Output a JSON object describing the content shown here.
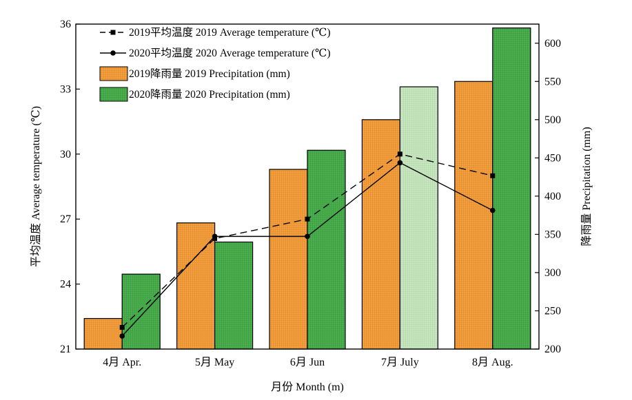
{
  "chart_data": {
    "type": "bar",
    "categories": [
      "4月 Apr.",
      "5月 May",
      "6月 Jun",
      "7月 July",
      "8月 Aug."
    ],
    "xlabel": "月份 Month (m)",
    "ylabel_left": "平均温度 Average temperature (℃)",
    "ylabel_right": "降雨量 Precipitation (mm)",
    "ylim_left": [
      21,
      36
    ],
    "yticks_left": [
      "21",
      "24",
      "27",
      "30",
      "33",
      "36"
    ],
    "ylim_right": [
      200,
      625
    ],
    "yticks_right": [
      "200",
      "250",
      "300",
      "350",
      "400",
      "450",
      "500",
      "550",
      "600"
    ],
    "grid": false,
    "legend_position": "top-left",
    "bar_series": [
      {
        "name": "2019降雨量 2019 Precipitation (mm)",
        "values": [
          240,
          365,
          435,
          500,
          550
        ],
        "color": "#f5a040"
      },
      {
        "name": "2020降雨量 2020 Precipitation (mm)",
        "values": [
          298,
          340,
          460,
          543,
          620
        ],
        "color": "#4caf50",
        "highlight_index": 3,
        "highlight_color": "#c8e6c0"
      }
    ],
    "line_series": [
      {
        "name": "2019平均温度 2019 Average temperature (℃)",
        "values": [
          22.0,
          26.1,
          27.0,
          30.0,
          29.0
        ],
        "style": "dashed",
        "marker": "square"
      },
      {
        "name": "2020平均温度 2020 Average  temperature (℃)",
        "values": [
          21.6,
          26.2,
          26.2,
          29.6,
          27.4
        ],
        "style": "solid",
        "marker": "circle"
      }
    ]
  }
}
